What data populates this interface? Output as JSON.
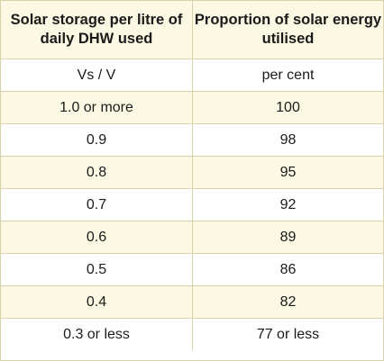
{
  "table": {
    "headers": [
      "Solar storage per litre of daily DHW used",
      "Proportion of solar energy utilised"
    ],
    "rows": [
      [
        "Vs / V",
        "per cent"
      ],
      [
        "1.0 or more",
        "100"
      ],
      [
        "0.9",
        "98"
      ],
      [
        "0.8",
        "95"
      ],
      [
        "0.7",
        "92"
      ],
      [
        "0.6",
        "89"
      ],
      [
        "0.5",
        "86"
      ],
      [
        "0.4",
        "82"
      ],
      [
        "0.3 or less",
        "77 or less"
      ]
    ]
  }
}
